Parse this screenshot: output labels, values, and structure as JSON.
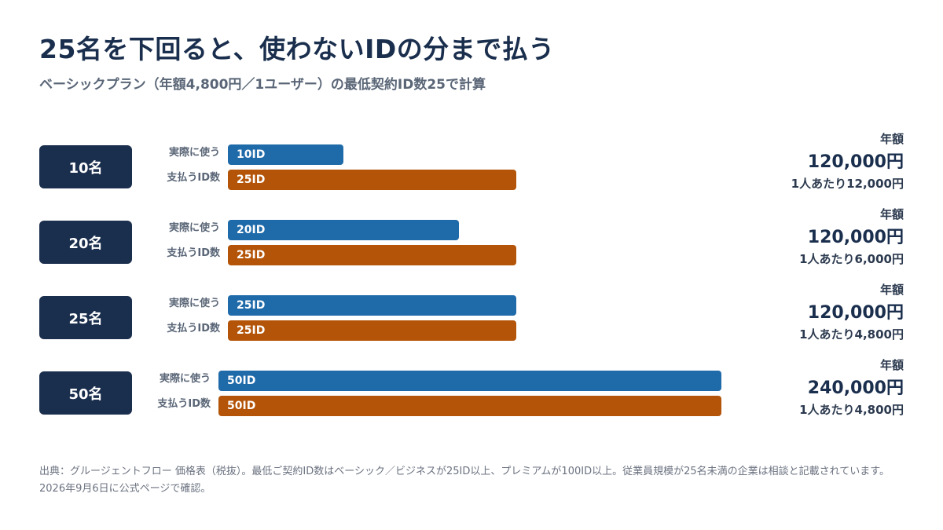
{
  "title": "25名を下回ると、使わないIDの分まで払う",
  "subtitle": "ベーシックプラン（年額4,800円／1ユーザー）の最低契約ID数25で計算",
  "footnote": "出典：グルージェントフロー 価格表（税抜）。最低ご契約ID数はベーシック／ビジネスが25ID以上、プレミアムが100ID以上。従業員規模が25名未満の企業は相談と記載されています。2026年9月6日に公式ページで確認。",
  "labels": {
    "used": "実際に使う",
    "paid": "支払うID数",
    "price_heading": "年額"
  },
  "colors": {
    "navy": "#1a2e4d",
    "used_bar": "#1f6aa9",
    "paid_bar": "#b35408"
  },
  "chart_data": {
    "type": "bar",
    "orientation": "horizontal",
    "title": "25名を下回ると、使わないIDの分まで払う",
    "subtitle": "ベーシックプラン（年額4,800円／1ユーザー）の最低契約ID数25で計算",
    "xlim": [
      0,
      50
    ],
    "grid": false,
    "categories": [
      "10名",
      "20名",
      "25名",
      "50名"
    ],
    "series": [
      {
        "name": "実際に使う",
        "values": [
          10,
          20,
          25,
          50
        ],
        "labels": [
          "10ID",
          "20ID",
          "25ID",
          "50ID"
        ]
      },
      {
        "name": "支払うID数",
        "values": [
          25,
          25,
          25,
          50
        ],
        "labels": [
          "25ID",
          "25ID",
          "25ID",
          "50ID"
        ]
      }
    ],
    "annual_price": [
      "120,000円",
      "120,000円",
      "120,000円",
      "240,000円"
    ],
    "per_person": [
      "1人あたり12,000円",
      "1人あたり6,000円",
      "1人あたり4,800円",
      "1人あたり4,800円"
    ]
  }
}
